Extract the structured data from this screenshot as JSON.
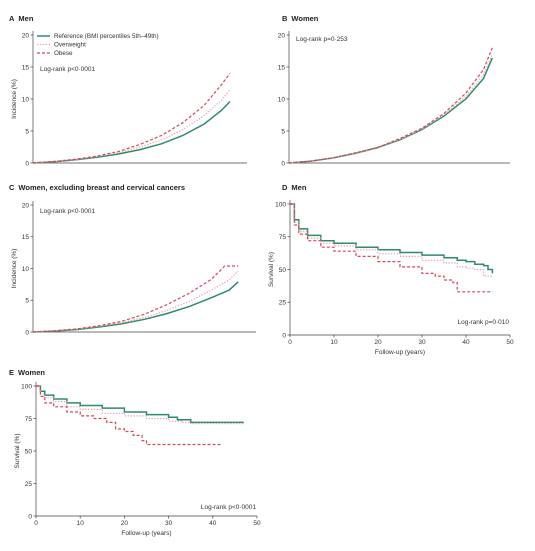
{
  "colors": {
    "reference": "#2e8b6e",
    "overweight": "#e8a0a8",
    "obese": "#d24a5c",
    "axis": "#444444"
  },
  "chart_data": [
    {
      "type": "line",
      "panel_letter": "A",
      "title": "Men",
      "xlabel": "",
      "ylabel": "Incidence (%)",
      "xlim": [
        0,
        50
      ],
      "ylim": [
        0,
        20
      ],
      "x_ticks": [],
      "y_ticks": [
        0,
        5,
        10,
        15,
        20
      ],
      "annotation": "Log-rank p<0·0001",
      "legend": [
        "Reference (BMI percentiles 5th–49th)",
        "Overweight",
        "Obese"
      ],
      "series": [
        {
          "name": "Reference (BMI percentiles 5th–49th)",
          "style": "solid",
          "color_key": "reference",
          "points": [
            [
              0,
              0
            ],
            [
              5,
              0.2
            ],
            [
              10,
              0.5
            ],
            [
              15,
              0.9
            ],
            [
              20,
              1.4
            ],
            [
              25,
              2.1
            ],
            [
              30,
              3.0
            ],
            [
              35,
              4.3
            ],
            [
              40,
              6.1
            ],
            [
              44,
              8.2
            ],
            [
              46,
              9.6
            ]
          ]
        },
        {
          "name": "Overweight",
          "style": "dotted",
          "color_key": "overweight",
          "points": [
            [
              0,
              0
            ],
            [
              5,
              0.2
            ],
            [
              10,
              0.55
            ],
            [
              15,
              1.0
            ],
            [
              20,
              1.6
            ],
            [
              25,
              2.5
            ],
            [
              30,
              3.6
            ],
            [
              35,
              5.2
            ],
            [
              40,
              7.4
            ],
            [
              44,
              9.8
            ],
            [
              46,
              11.4
            ]
          ]
        },
        {
          "name": "Obese",
          "style": "dashed",
          "color_key": "obese",
          "points": [
            [
              0,
              0
            ],
            [
              5,
              0.25
            ],
            [
              10,
              0.6
            ],
            [
              15,
              1.1
            ],
            [
              20,
              1.8
            ],
            [
              25,
              2.9
            ],
            [
              30,
              4.3
            ],
            [
              35,
              6.3
            ],
            [
              40,
              9.0
            ],
            [
              44,
              12.2
            ],
            [
              46,
              14.0
            ]
          ]
        }
      ]
    },
    {
      "type": "line",
      "panel_letter": "B",
      "title": "Women",
      "xlabel": "",
      "ylabel": "",
      "xlim": [
        0,
        50
      ],
      "ylim": [
        0,
        20
      ],
      "x_ticks": [],
      "y_ticks": [
        0,
        5,
        10,
        15,
        20
      ],
      "annotation": "Log-rank p=0·253",
      "series": [
        {
          "name": "Reference",
          "style": "solid",
          "color_key": "reference",
          "points": [
            [
              0,
              0
            ],
            [
              5,
              0.3
            ],
            [
              10,
              0.8
            ],
            [
              15,
              1.5
            ],
            [
              20,
              2.4
            ],
            [
              25,
              3.6
            ],
            [
              30,
              5.2
            ],
            [
              35,
              7.3
            ],
            [
              40,
              10.0
            ],
            [
              44,
              13.2
            ],
            [
              46,
              16.4
            ]
          ]
        },
        {
          "name": "Overweight",
          "style": "dotted",
          "color_key": "overweight",
          "points": [
            [
              0,
              0
            ],
            [
              5,
              0.3
            ],
            [
              10,
              0.8
            ],
            [
              15,
              1.5
            ],
            [
              20,
              2.3
            ],
            [
              25,
              3.6
            ],
            [
              30,
              5.3
            ],
            [
              35,
              7.5
            ],
            [
              40,
              10.4
            ],
            [
              44,
              13.8
            ],
            [
              46,
              17.0
            ]
          ]
        },
        {
          "name": "Obese",
          "style": "dashed",
          "color_key": "obese",
          "points": [
            [
              0,
              0
            ],
            [
              5,
              0.3
            ],
            [
              10,
              0.8
            ],
            [
              15,
              1.6
            ],
            [
              20,
              2.4
            ],
            [
              25,
              3.8
            ],
            [
              30,
              5.4
            ],
            [
              35,
              7.7
            ],
            [
              40,
              10.9
            ],
            [
              44,
              14.6
            ],
            [
              46,
              18.0
            ]
          ]
        }
      ]
    },
    {
      "type": "line",
      "panel_letter": "C",
      "title": "Women, excluding breast and cervical cancers",
      "xlabel": "",
      "ylabel": "Incidence (%)",
      "xlim": [
        0,
        50
      ],
      "ylim": [
        0,
        20
      ],
      "x_ticks": [],
      "y_ticks": [
        0,
        5,
        10,
        15,
        20
      ],
      "annotation": "Log-rank p<0·0001",
      "series": [
        {
          "name": "Reference",
          "style": "solid",
          "color_key": "reference",
          "points": [
            [
              0,
              0
            ],
            [
              5,
              0.15
            ],
            [
              10,
              0.4
            ],
            [
              15,
              0.8
            ],
            [
              20,
              1.3
            ],
            [
              25,
              2.0
            ],
            [
              30,
              2.9
            ],
            [
              35,
              4.0
            ],
            [
              40,
              5.4
            ],
            [
              44,
              6.6
            ],
            [
              46,
              7.9
            ]
          ]
        },
        {
          "name": "Overweight",
          "style": "dotted",
          "color_key": "overweight",
          "points": [
            [
              0,
              0
            ],
            [
              5,
              0.2
            ],
            [
              10,
              0.45
            ],
            [
              15,
              0.9
            ],
            [
              20,
              1.5
            ],
            [
              25,
              2.3
            ],
            [
              30,
              3.4
            ],
            [
              35,
              4.8
            ],
            [
              40,
              6.6
            ],
            [
              44,
              8.2
            ],
            [
              46,
              9.6
            ]
          ]
        },
        {
          "name": "Obese",
          "style": "dashed",
          "color_key": "obese",
          "points": [
            [
              0,
              0
            ],
            [
              5,
              0.2
            ],
            [
              10,
              0.5
            ],
            [
              15,
              1.0
            ],
            [
              20,
              1.7
            ],
            [
              25,
              2.8
            ],
            [
              30,
              4.3
            ],
            [
              35,
              6.1
            ],
            [
              40,
              8.3
            ],
            [
              43,
              10.4
            ],
            [
              46,
              10.4
            ]
          ]
        }
      ]
    },
    {
      "type": "line",
      "panel_letter": "D",
      "title": "Men",
      "xlabel": "Follow-up (years)",
      "ylabel": "Survival (%)",
      "xlim": [
        0,
        50
      ],
      "ylim": [
        0,
        100
      ],
      "x_ticks": [
        0,
        10,
        20,
        30,
        40,
        50
      ],
      "y_ticks": [
        0,
        25,
        50,
        75,
        100
      ],
      "annotation": "Log-rank p=0·010",
      "series": [
        {
          "name": "Reference",
          "style": "solid",
          "color_key": "reference",
          "points": [
            [
              0,
              100
            ],
            [
              1,
              88
            ],
            [
              2,
              81
            ],
            [
              4,
              76
            ],
            [
              7,
              72
            ],
            [
              10,
              70
            ],
            [
              15,
              67
            ],
            [
              20,
              65
            ],
            [
              25,
              63
            ],
            [
              30,
              61
            ],
            [
              35,
              59
            ],
            [
              38,
              57
            ],
            [
              40,
              56
            ],
            [
              42,
              54
            ],
            [
              44,
              53
            ],
            [
              45,
              50
            ],
            [
              46,
              47
            ]
          ]
        },
        {
          "name": "Overweight",
          "style": "dotted",
          "color_key": "overweight",
          "points": [
            [
              0,
              100
            ],
            [
              1,
              86
            ],
            [
              2,
              79
            ],
            [
              4,
              74
            ],
            [
              7,
              70
            ],
            [
              10,
              68
            ],
            [
              15,
              65
            ],
            [
              20,
              62
            ],
            [
              25,
              60
            ],
            [
              30,
              57
            ],
            [
              35,
              55
            ],
            [
              38,
              52
            ],
            [
              40,
              51
            ],
            [
              42,
              50
            ],
            [
              44,
              45
            ],
            [
              46,
              44
            ]
          ]
        },
        {
          "name": "Obese",
          "style": "dashed",
          "color_key": "obese",
          "points": [
            [
              0,
              100
            ],
            [
              1,
              84
            ],
            [
              2,
              77
            ],
            [
              4,
              72
            ],
            [
              7,
              67
            ],
            [
              10,
              64
            ],
            [
              15,
              60
            ],
            [
              20,
              56
            ],
            [
              25,
              52
            ],
            [
              30,
              47
            ],
            [
              33,
              45
            ],
            [
              35,
              42
            ],
            [
              37,
              40
            ],
            [
              38,
              33
            ],
            [
              41,
              33
            ],
            [
              46,
              33
            ]
          ]
        }
      ]
    },
    {
      "type": "line",
      "panel_letter": "E",
      "title": "Women",
      "xlabel": "Follow-up (years)",
      "ylabel": "Survival (%)",
      "xlim": [
        0,
        50
      ],
      "ylim": [
        0,
        100
      ],
      "x_ticks": [
        0,
        10,
        20,
        30,
        40,
        50
      ],
      "y_ticks": [
        0,
        25,
        50,
        75,
        100
      ],
      "annotation": "Log-rank p<0·0001",
      "series": [
        {
          "name": "Reference",
          "style": "solid",
          "color_key": "reference",
          "points": [
            [
              0,
              100
            ],
            [
              1,
              96
            ],
            [
              2,
              93
            ],
            [
              4,
              90
            ],
            [
              7,
              87
            ],
            [
              10,
              85
            ],
            [
              15,
              83
            ],
            [
              20,
              80
            ],
            [
              25,
              78
            ],
            [
              30,
              76
            ],
            [
              32,
              74
            ],
            [
              35,
              72
            ],
            [
              40,
              72
            ],
            [
              47,
              72
            ]
          ]
        },
        {
          "name": "Overweight",
          "style": "dotted",
          "color_key": "overweight",
          "points": [
            [
              0,
              100
            ],
            [
              1,
              94
            ],
            [
              2,
              91
            ],
            [
              4,
              88
            ],
            [
              7,
              84
            ],
            [
              10,
              82
            ],
            [
              15,
              79
            ],
            [
              20,
              77
            ],
            [
              25,
              75
            ],
            [
              30,
              73
            ],
            [
              33,
              72
            ],
            [
              35,
              71
            ],
            [
              40,
              71
            ],
            [
              47,
              71
            ]
          ]
        },
        {
          "name": "Obese",
          "style": "dashed",
          "color_key": "obese",
          "points": [
            [
              0,
              100
            ],
            [
              1,
              92
            ],
            [
              2,
              87
            ],
            [
              4,
              84
            ],
            [
              7,
              80
            ],
            [
              10,
              77
            ],
            [
              13,
              75
            ],
            [
              16,
              72
            ],
            [
              18,
              67
            ],
            [
              20,
              65
            ],
            [
              22,
              62
            ],
            [
              24,
              58
            ],
            [
              25,
              55
            ],
            [
              30,
              55
            ],
            [
              42,
              55
            ]
          ]
        }
      ]
    }
  ]
}
